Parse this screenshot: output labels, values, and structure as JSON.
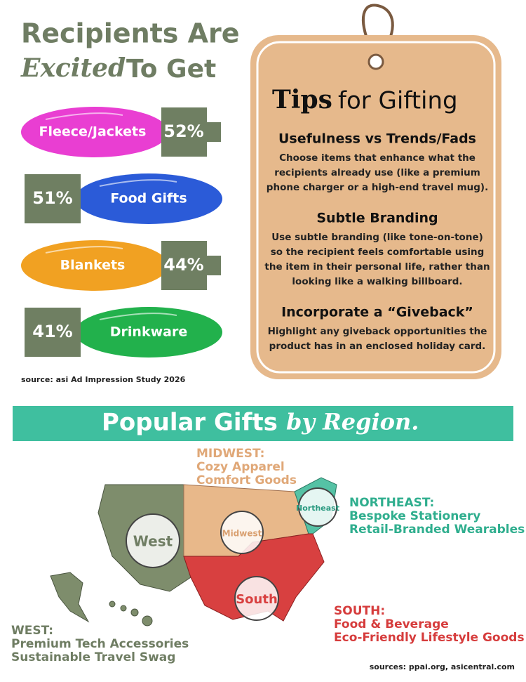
{
  "left": {
    "title_line1": "Recipients Are",
    "title_line2_a": "Excited",
    "title_line2_b": "To Get",
    "items": [
      {
        "label": "Fleece/Jackets",
        "percent": "52%"
      },
      {
        "label": "Food Gifts",
        "percent": "51%"
      },
      {
        "label": "Blankets",
        "percent": "44%"
      },
      {
        "label": "Drinkware",
        "percent": "41%"
      }
    ],
    "source": "source: asi Ad Impression Study 2026"
  },
  "tips": {
    "title_a": "Tips",
    "title_b": "for Gifting",
    "sections": [
      {
        "heading": "Usefulness vs Trends/Fads",
        "lines": [
          "Choose items that enhance what the",
          "recipients already use (like a premium",
          "phone charger or a high-end travel mug)."
        ]
      },
      {
        "heading": "Subtle Branding",
        "lines": [
          "Use subtle branding (like tone-on-tone)",
          "so the recipient feels comfortable using",
          "the item in their personal life, rather than",
          "looking like a walking billboard."
        ]
      },
      {
        "heading": "Incorporate a “Giveback”",
        "lines": [
          "Highlight any giveback opportunities the",
          "product has in an enclosed holiday card."
        ]
      }
    ]
  },
  "region": {
    "banner_a": "Popular Gifts",
    "banner_b": "by Region.",
    "regions": [
      {
        "name": "MIDWEST:",
        "items": [
          "Cozy Apparel",
          "Comfort Goods"
        ]
      },
      {
        "name": "NORTHEAST:",
        "items": [
          "Bespoke Stationery",
          "Retail-Branded Wearables"
        ]
      },
      {
        "name": "SOUTH:",
        "items": [
          "Food & Beverage",
          "Eco-Friendly Lifestyle Goods"
        ]
      },
      {
        "name": "WEST:",
        "items": [
          "Premium Tech Accessories",
          "Sustainable Travel Swag"
        ]
      }
    ],
    "map_labels": [
      "West",
      "Midwest",
      "Northeast",
      "South"
    ],
    "source": "sources: ppai.org, asicentral.com"
  }
}
